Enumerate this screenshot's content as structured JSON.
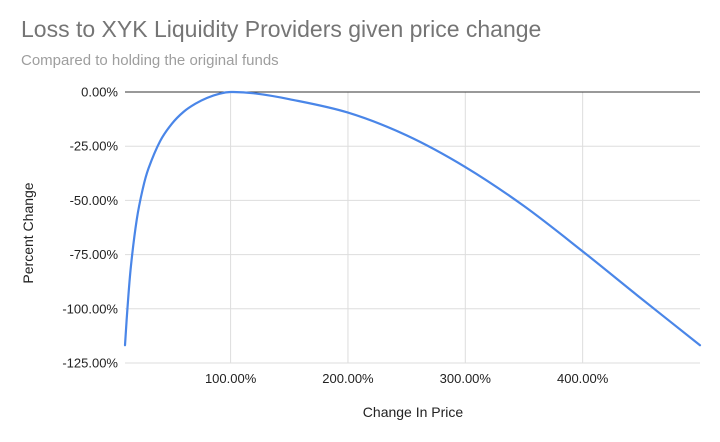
{
  "header": {
    "title": "Loss to XYK Liquidity Providers given price change",
    "subtitle": "Compared to holding the original funds"
  },
  "chart_data": {
    "type": "line",
    "title": "Loss to XYK Liquidity Providers given price change",
    "subtitle": "Compared to holding the original funds",
    "xlabel": "Change In Price",
    "ylabel": "Percent Change",
    "x_unit": "percent",
    "y_unit": "percent",
    "xlim": [
      10,
      500
    ],
    "ylim": [
      -125,
      0
    ],
    "xticks": [
      100,
      200,
      300,
      400
    ],
    "xtick_labels": [
      "100.00%",
      "200.00%",
      "300.00%",
      "400.00%"
    ],
    "yticks": [
      0,
      -25,
      -50,
      -75,
      -100,
      -125
    ],
    "ytick_labels": [
      "0.00%",
      "-25.00%",
      "-50.00%",
      "-75.00%",
      "-100.00%",
      "-125.00%"
    ],
    "grid": true,
    "legend": "none",
    "series": [
      {
        "color": "#4a86e8",
        "x": [
          10,
          12,
          15,
          20,
          25,
          30,
          40,
          50,
          60,
          70,
          80,
          90,
          100,
          120,
          150,
          200,
          250,
          300,
          350,
          400,
          450,
          500
        ],
        "y": [
          -116.8,
          -100.5,
          -80.6,
          -58.9,
          -45.0,
          -35.3,
          -22.6,
          -14.6,
          -9.1,
          -5.4,
          -2.7,
          -0.9,
          0.0,
          -0.6,
          -3.3,
          -9.5,
          -20.0,
          -34.6,
          -52.6,
          -73.5,
          -95.3,
          -116.8
        ]
      }
    ]
  }
}
